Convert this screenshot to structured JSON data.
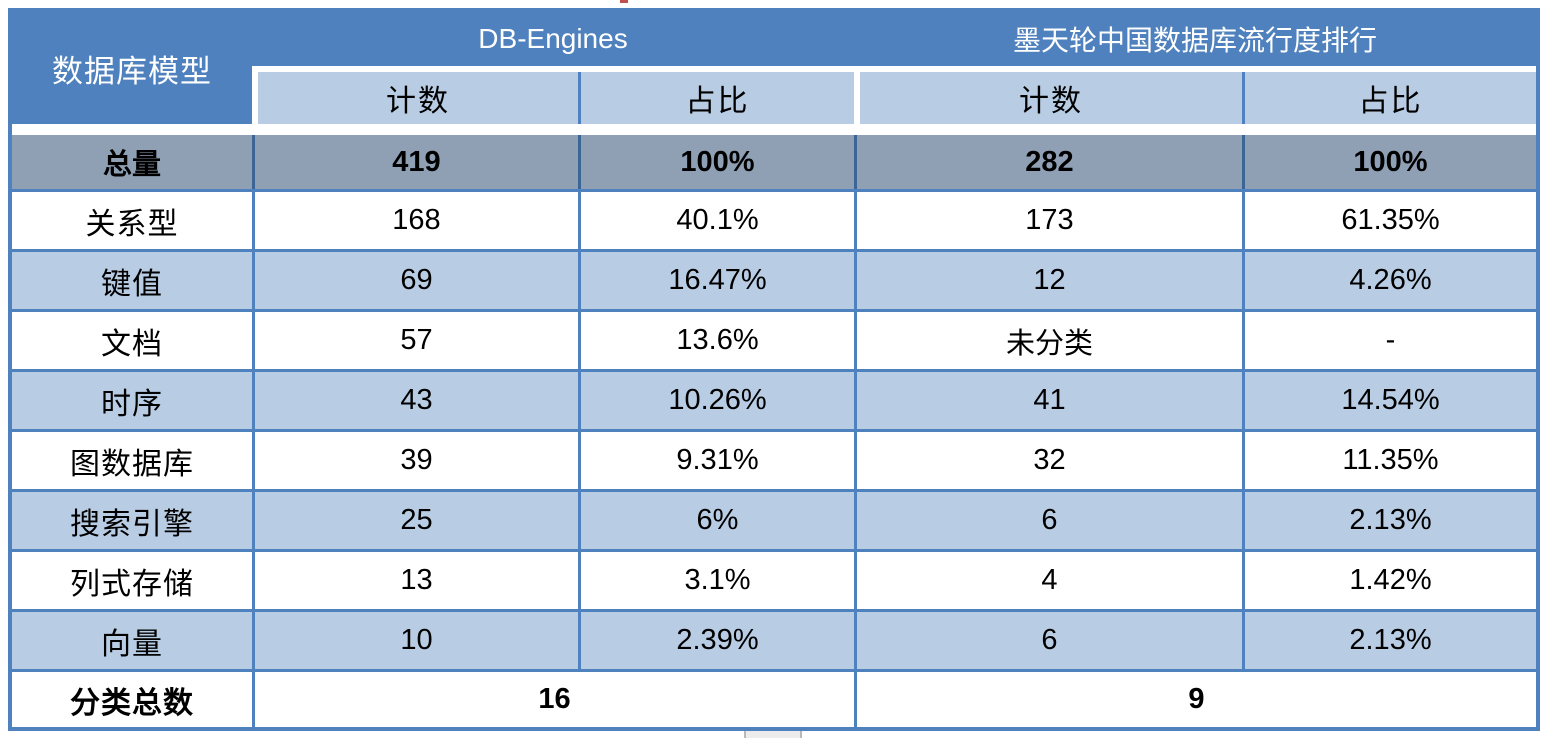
{
  "chart_data": {
    "type": "table",
    "corner_header": "数据库模型",
    "column_groups": [
      {
        "label": "DB-Engines",
        "subcolumns": [
          "计数",
          "占比"
        ]
      },
      {
        "label": "墨天轮中国数据库流行度排行",
        "subcolumns": [
          "计数",
          "占比"
        ]
      }
    ],
    "total_row": {
      "label": "总量",
      "cells": [
        "419",
        "100%",
        "282",
        "100%"
      ]
    },
    "rows": [
      {
        "label": "关系型",
        "cells": [
          "168",
          "40.1%",
          "173",
          "61.35%"
        ]
      },
      {
        "label": "键值",
        "cells": [
          "69",
          "16.47%",
          "12",
          "4.26%"
        ]
      },
      {
        "label": "文档",
        "cells": [
          "57",
          "13.6%",
          "未分类",
          "-"
        ]
      },
      {
        "label": "时序",
        "cells": [
          "43",
          "10.26%",
          "41",
          "14.54%"
        ]
      },
      {
        "label": "图数据库",
        "cells": [
          "39",
          "9.31%",
          "32",
          "11.35%"
        ]
      },
      {
        "label": "搜索引擎",
        "cells": [
          "25",
          "6%",
          "6",
          "2.13%"
        ]
      },
      {
        "label": "列式存储",
        "cells": [
          "13",
          "3.1%",
          "4",
          "1.42%"
        ]
      },
      {
        "label": "向量",
        "cells": [
          "10",
          "2.39%",
          "6",
          "2.13%"
        ]
      }
    ],
    "footer_row": {
      "label": "分类总数",
      "db_engines_total": "16",
      "modb_total": "9"
    }
  },
  "colors": {
    "header_blue": "#4E81BD",
    "light_blue": "#B8CCE4",
    "total_row_gray": "#8FA0B5",
    "border_blue": "#4E81BD",
    "total_divider_blue": "#3D6497",
    "artifact_red": "#C0504D"
  }
}
